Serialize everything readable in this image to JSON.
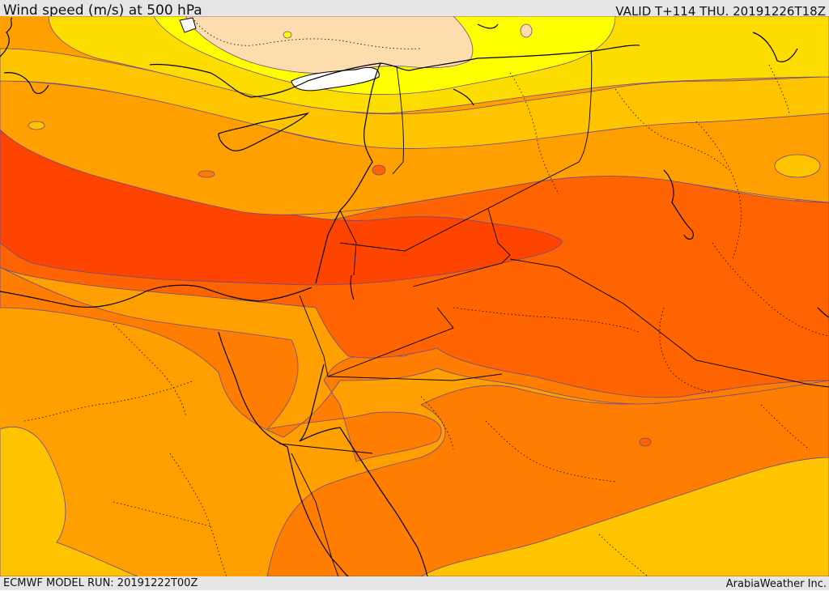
{
  "header": {
    "title": "Wind speed (m/s) at 500 hPa",
    "valid": "VALID T+114 THU. 20191226T18Z"
  },
  "footer": {
    "model_run": "ECMWF MODEL RUN: 20191222T00Z",
    "credit": "ArabiaWeather Inc."
  },
  "map": {
    "variable": "wind speed at 500 hPa",
    "units": "m/s",
    "palette": [
      "#ffffff",
      "#fddcae",
      "#ffff00",
      "#fddc00",
      "#ffc400",
      "#ff9f00",
      "#ff7d00",
      "#ff6400",
      "#ff4400"
    ],
    "line_colors": {
      "coast_border": "#000000",
      "contour": "#6a4a8c",
      "internal_border": "#000000"
    }
  }
}
